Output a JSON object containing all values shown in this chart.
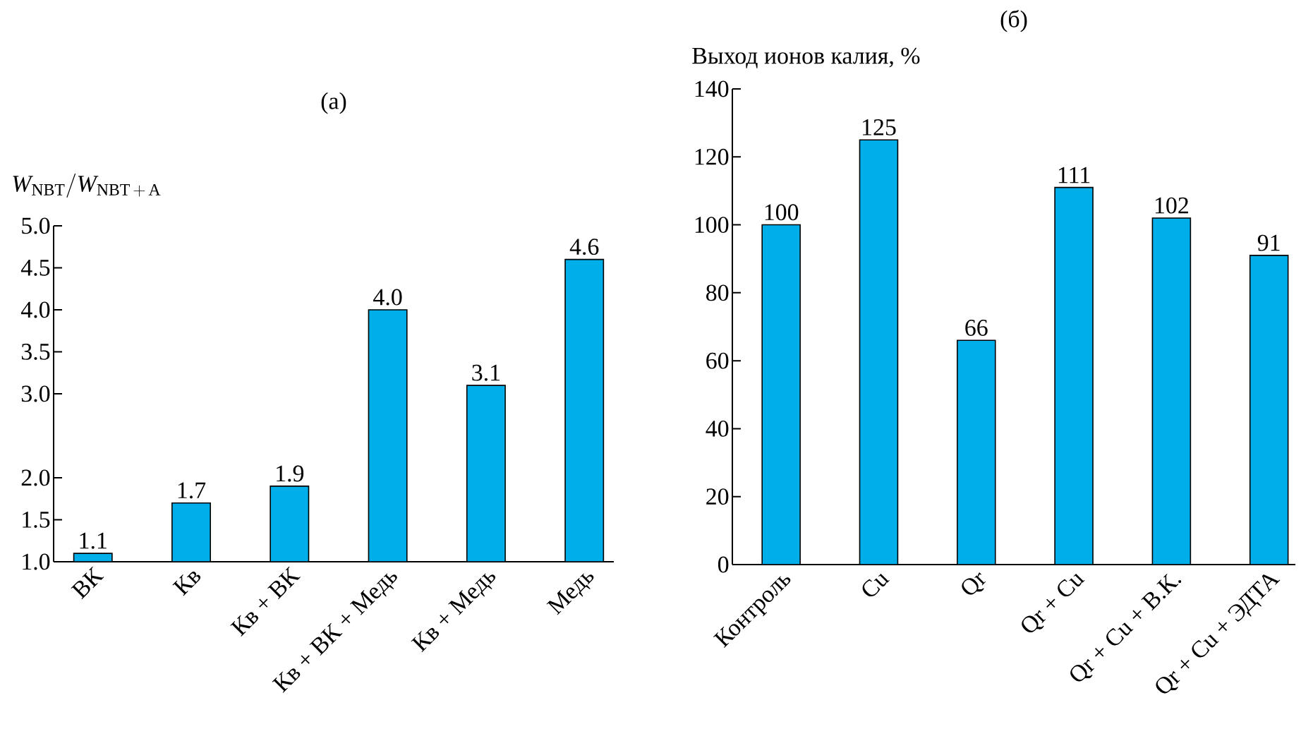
{
  "chart_data": [
    {
      "type": "bar",
      "title": "(а)",
      "ylabel": "\\mathit{W}_{\\mathrm{NBT}}\\mathrm{/}\\mathit{W}_{\\mathrm{NBT\\,+\\,A}}",
      "categories": [
        "ВК",
        "Кв",
        "Кв + ВК",
        "Кв + ВК + Медь",
        "Кв + Медь",
        "Медь"
      ],
      "values": [
        1.1,
        1.7,
        1.9,
        4.0,
        3.1,
        4.6
      ],
      "value_labels": [
        "1.1",
        "1.7",
        "1.9",
        "4.0",
        "3.1",
        "4.6"
      ],
      "color": "#00aeea",
      "ylim": [
        1,
        5
      ],
      "yticks": [
        {
          "value": 1,
          "label": "1.0"
        },
        {
          "value": 1.5,
          "label": "1.5"
        },
        {
          "value": 2,
          "label": "2.0"
        },
        {
          "value": 3,
          "label": "3.0"
        },
        {
          "value": 3.5,
          "label": "3.5"
        },
        {
          "value": 4,
          "label": "4.0"
        },
        {
          "value": 4.5,
          "label": "4.5"
        },
        {
          "value": 5,
          "label": "5.0"
        }
      ]
    },
    {
      "type": "bar",
      "title": "(б)",
      "ylabel": "Выход ионов калия, %",
      "categories": [
        "Контроль",
        "Cu",
        "Qr",
        "Qr + Cu",
        "Qr + Cu + В.К.",
        "Qr + Cu + ЭДТА"
      ],
      "values": [
        100,
        125,
        66,
        111,
        102,
        91
      ],
      "data_labels": true,
      "color": "#00aeea",
      "ylim": [
        0,
        140
      ],
      "yticks": [
        0,
        20,
        40,
        60,
        80,
        100,
        120,
        140
      ]
    }
  ]
}
